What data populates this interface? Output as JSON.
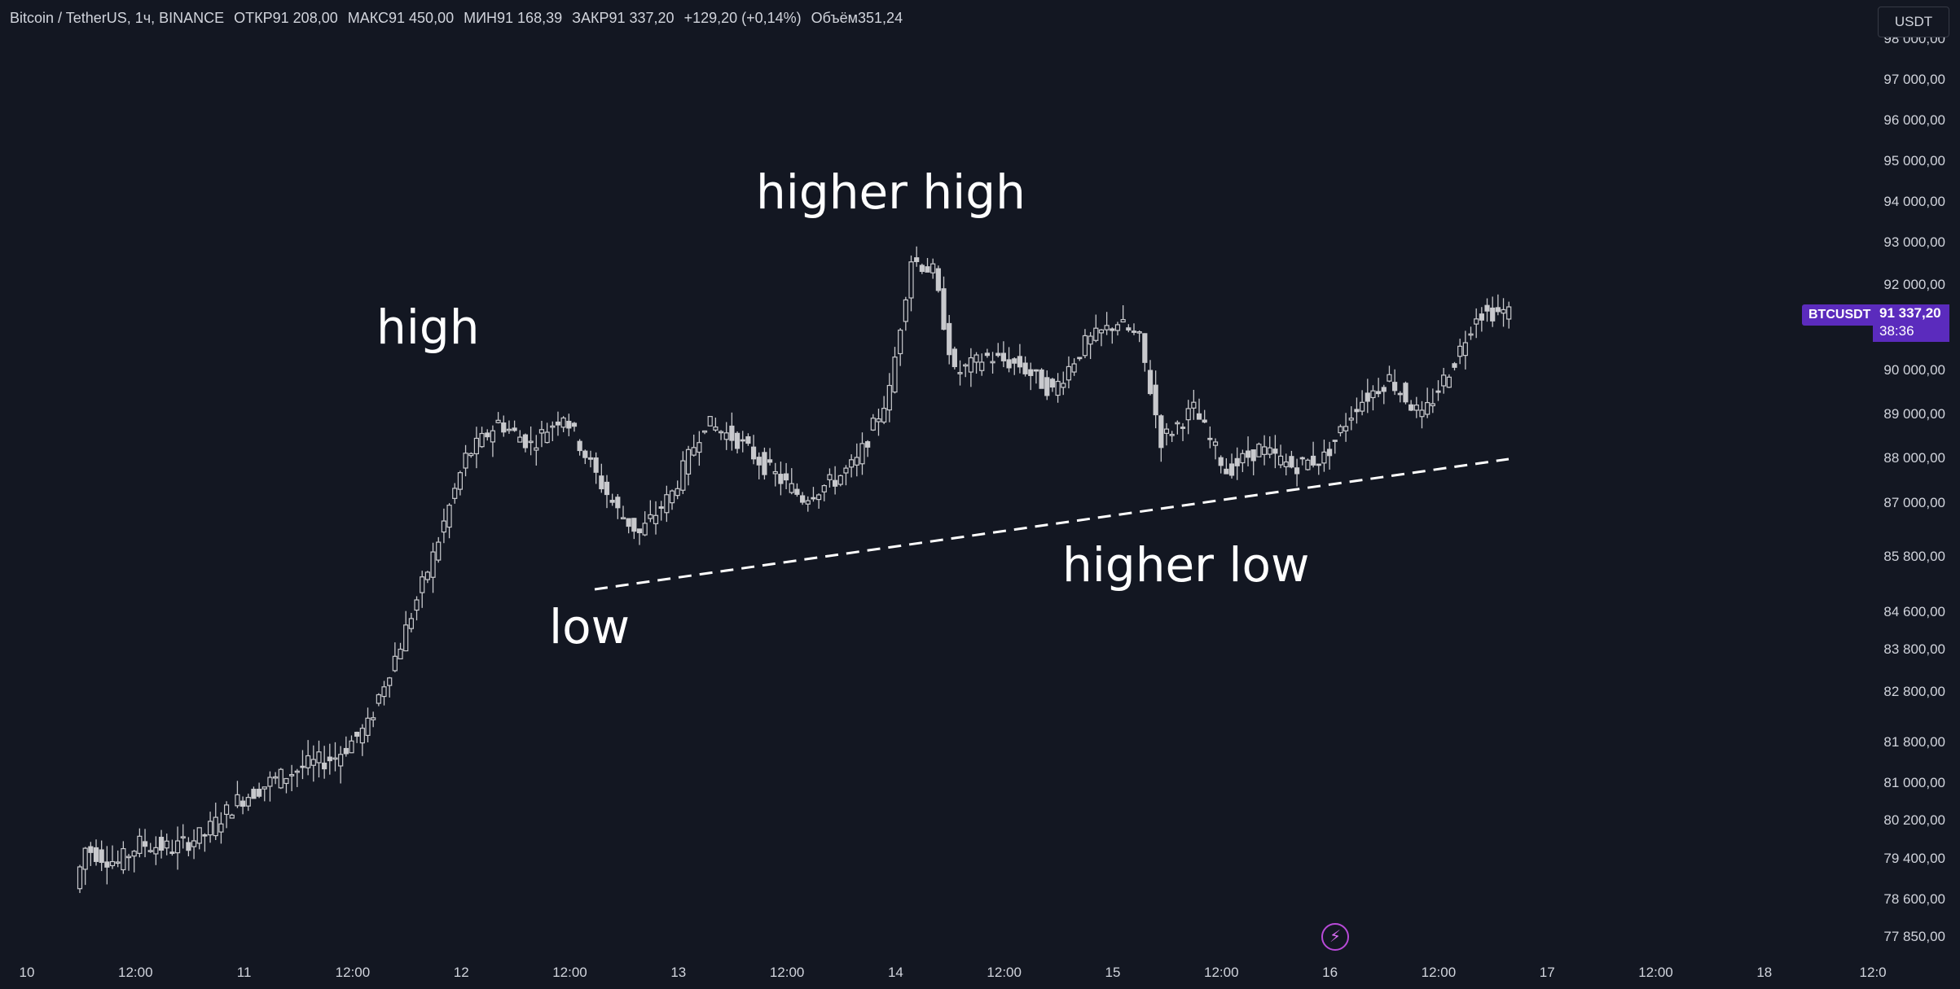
{
  "legend": {
    "symbol": "Bitcoin / TetherUS, 1ч, BINANCE",
    "open": "ОТКР91 208,00",
    "high": "МАКС91 450,00",
    "low": "МИН91 168,39",
    "close": "ЗАКР91 337,20",
    "change": "+129,20 (+0,14%)",
    "volume": "Объём351,24"
  },
  "currency_button": "USDT",
  "price_tag": {
    "ticker": "BTCUSDT",
    "price": "91 337,20",
    "countdown": "38:36"
  },
  "colors": {
    "background": "#131722",
    "candle": "#c8c9cd",
    "tag": "#5b2bbd",
    "annotation": "#ffffff"
  },
  "chart_data": {
    "type": "candlestick",
    "y_axis_labels": [
      "98 000,00",
      "97 000,00",
      "96 000,00",
      "95 000,00",
      "94 000,00",
      "93 000,00",
      "92 000,00",
      "91 000,00",
      "90 000,00",
      "89 000,00",
      "88 000,00",
      "87 000,00",
      "85 800,00",
      "84 600,00",
      "83 800,00",
      "82 800,00",
      "81 800,00",
      "81 000,00",
      "80 200,00",
      "79 400,00",
      "78 600,00",
      "77 850,00"
    ],
    "x_axis_labels": [
      "10",
      "12:00",
      "11",
      "12:00",
      "12",
      "12:00",
      "13",
      "12:00",
      "14",
      "12:00",
      "15",
      "12:00",
      "16",
      "12:00",
      "17",
      "12:00",
      "18",
      "12:0"
    ],
    "annotations": [
      "high",
      "low",
      "higher high",
      "higher low"
    ],
    "key_points": [
      {
        "label": "high",
        "date": "Nov 11 ~23:00",
        "price": 90000
      },
      {
        "label": "low",
        "date": "Nov 12 ~18:00",
        "price": 85700
      },
      {
        "label": "higher high",
        "date": "Nov 13 ~10:00",
        "price": 93300
      },
      {
        "label": "higher low",
        "date": "Nov 15 ~00:00",
        "price": 86900
      }
    ],
    "trendline": {
      "style": "dashed",
      "from": {
        "date": "Nov 12 ~18:00",
        "price": 85700
      },
      "to": {
        "date": "Nov 16 ~16:00",
        "price": 88000
      }
    },
    "last_price": 91337.2
  }
}
